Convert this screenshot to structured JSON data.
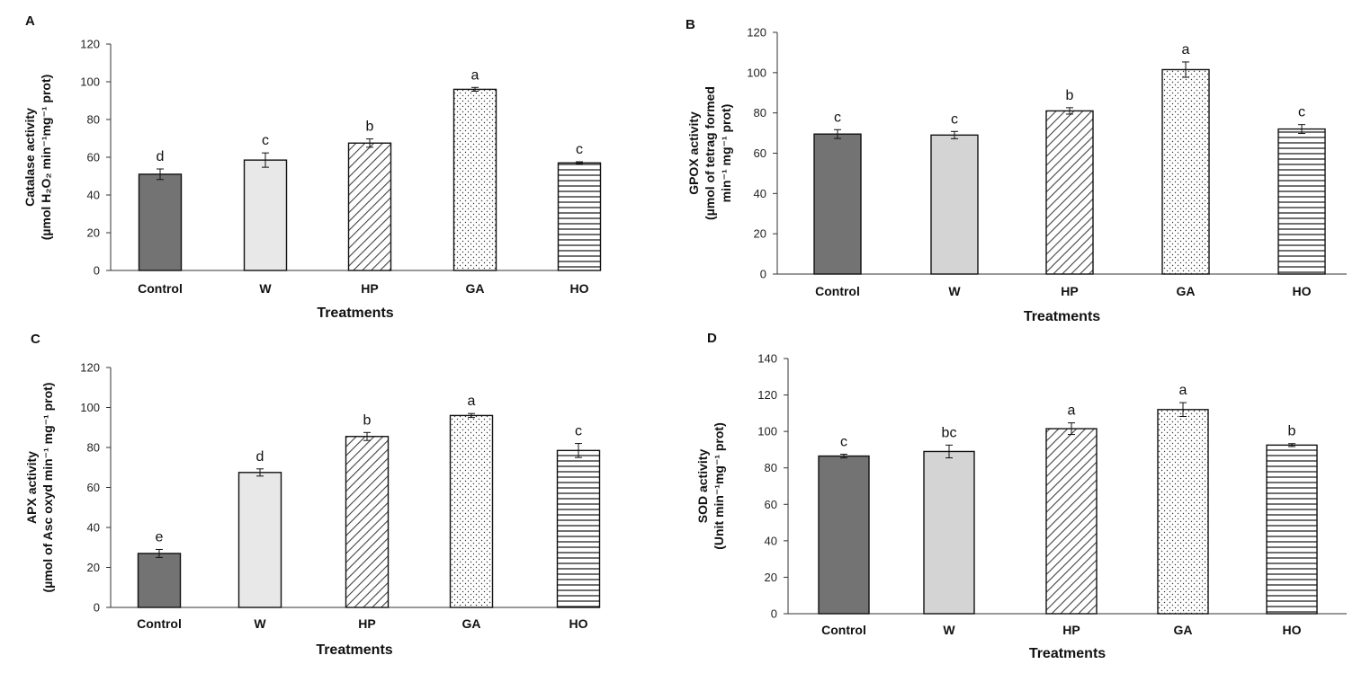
{
  "chart_data": [
    {
      "panel": "A",
      "type": "bar",
      "categories": [
        "Control",
        "W",
        "HP",
        "GA",
        "HO"
      ],
      "values": [
        51,
        58.5,
        67.5,
        96,
        57
      ],
      "errors": [
        2.8,
        3.8,
        2.2,
        1.0,
        0.6
      ],
      "significance": [
        "d",
        "c",
        "b",
        "a",
        "c"
      ],
      "xlabel": "Treatments",
      "ylabel_line1": "Catalase activity",
      "ylabel_line2": "(µmol H₂O₂ min⁻¹mg⁻¹ prot)",
      "ylim": [
        0,
        120
      ],
      "yticks": [
        0,
        20,
        40,
        60,
        80,
        100,
        120
      ]
    },
    {
      "panel": "B",
      "type": "bar",
      "categories": [
        "Control",
        "W",
        "HP",
        "GA",
        "HO"
      ],
      "values": [
        69.5,
        69,
        81,
        101.5,
        72
      ],
      "errors": [
        2.2,
        1.8,
        1.6,
        3.8,
        2.2
      ],
      "significance": [
        "c",
        "c",
        "b",
        "a",
        "c"
      ],
      "xlabel": "Treatments",
      "ylabel_line1": "GPOX activity",
      "ylabel_line2": "(µmol of tetrag formed",
      "ylabel_line3": "min⁻¹ mg⁻¹ prot)",
      "ylim": [
        0,
        120
      ],
      "yticks": [
        0,
        20,
        40,
        60,
        80,
        100,
        120
      ]
    },
    {
      "panel": "C",
      "type": "bar",
      "categories": [
        "Control",
        "W",
        "HP",
        "GA",
        "HO"
      ],
      "values": [
        27,
        67.5,
        85.5,
        96,
        78.5
      ],
      "errors": [
        2.0,
        1.8,
        2.0,
        1.0,
        3.5
      ],
      "significance": [
        "e",
        "d",
        "b",
        "a",
        "c"
      ],
      "xlabel": "Treatments",
      "ylabel_line1": "APX activity",
      "ylabel_line2": "(µmol of Asc oxyd min⁻¹ mg⁻¹ prot)",
      "ylim": [
        0,
        120
      ],
      "yticks": [
        0,
        20,
        40,
        60,
        80,
        100,
        120
      ]
    },
    {
      "panel": "D",
      "type": "bar",
      "categories": [
        "Control",
        "W",
        "HP",
        "GA",
        "HO"
      ],
      "values": [
        86.5,
        89,
        101.5,
        112,
        92.5
      ],
      "errors": [
        1.0,
        3.5,
        3.2,
        3.8,
        0.8
      ],
      "significance": [
        "c",
        "bc",
        "a",
        "a",
        "b"
      ],
      "xlabel": "Treatments",
      "ylabel_line1": "SOD activity",
      "ylabel_line2": "(Unit min⁻¹mg⁻¹ prot)",
      "ylim": [
        0,
        140
      ],
      "yticks": [
        0,
        20,
        40,
        60,
        80,
        100,
        120,
        140
      ]
    }
  ],
  "styles": {
    "bar_fills": [
      "#737373",
      "#e8e8e8",
      "stripe-diagonal",
      "dots",
      "stripe-horizontal"
    ],
    "bar_fills_panel_b_d_second": "#d4d4d4",
    "axis_color": "#333333"
  }
}
